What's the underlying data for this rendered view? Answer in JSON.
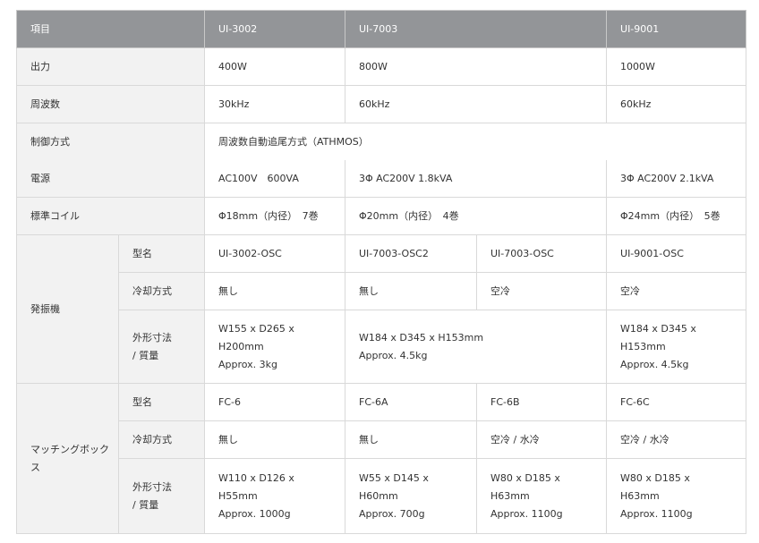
{
  "header": {
    "item": "項目",
    "models": [
      "UI-3002",
      "UI-7003",
      "UI-9001"
    ]
  },
  "rows": {
    "output": {
      "label": "出力",
      "values": [
        "400W",
        "800W",
        "1000W"
      ]
    },
    "frequency": {
      "label": "周波数",
      "values": [
        "30kHz",
        "60kHz",
        "60kHz"
      ]
    },
    "control": {
      "label": "制御方式",
      "value": "周波数自動追尾方式（ATHMOS）"
    },
    "power": {
      "label": "電源",
      "values": [
        "AC100V　600VA",
        "3Φ AC200V 1.8kVA",
        "3Φ AC200V 2.1kVA"
      ]
    },
    "coil": {
      "label": "標準コイル",
      "values": [
        "Φ18mm（内径）　7巻",
        "Φ20mm（内径）　4巻",
        "Φ24mm（内径）　5巻"
      ]
    }
  },
  "oscillator": {
    "label": "発振機",
    "model_label": "型名",
    "models": [
      "UI-3002-OSC",
      "UI-7003-OSC2",
      "UI-7003-OSC",
      "UI-9001-OSC"
    ],
    "cooling_label": "冷却方式",
    "cooling": [
      "無し",
      "無し",
      "空冷",
      "空冷"
    ],
    "dims_label": "外形寸法 / 質量",
    "dims": [
      "W155 x D265 x H200mm\nApprox. 3kg",
      "W184 x D345 x H153mm\nApprox. 4.5kg",
      "W184 x D345 x H153mm\nApprox. 4.5kg"
    ]
  },
  "matching": {
    "label": "マッチングボックス",
    "model_label": "型名",
    "models": [
      "FC-6",
      "FC-6A",
      "FC-6B",
      "FC-6C"
    ],
    "cooling_label": "冷却方式",
    "cooling": [
      "無し",
      "無し",
      "空冷 / 水冷",
      "空冷 / 水冷"
    ],
    "dims_label": "外形寸法 / 質量",
    "dims": [
      "W110 x D126 x H55mm\nApprox. 1000g",
      "W55 x D145 x H60mm\nApprox. 700g",
      "W80 x D185 x H63mm\nApprox. 1100g",
      "W80 x D185 x H63mm\nApprox. 1100g"
    ]
  }
}
